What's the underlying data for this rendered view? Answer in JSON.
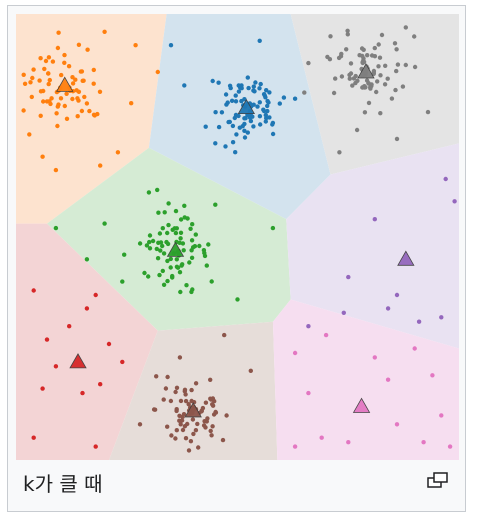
{
  "caption": "k가 클 때",
  "enlarge_icon": "magnify-clip-icon",
  "chart_data": {
    "type": "scatter",
    "title": "",
    "xlabel": "",
    "ylabel": "",
    "grid": false,
    "legend": "none",
    "centroids": [
      {
        "color": "#ff7f0e",
        "x": 0.11,
        "y": 0.16
      },
      {
        "color": "#1f77b4",
        "x": 0.52,
        "y": 0.21
      },
      {
        "color": "#7f7f7f",
        "x": 0.79,
        "y": 0.13
      },
      {
        "color": "#2ca02c",
        "x": 0.36,
        "y": 0.53
      },
      {
        "color": "#9467bd",
        "x": 0.88,
        "y": 0.55
      },
      {
        "color": "#d62728",
        "x": 0.14,
        "y": 0.78
      },
      {
        "color": "#8c564b",
        "x": 0.4,
        "y": 0.89
      },
      {
        "color": "#e377c2",
        "x": 0.78,
        "y": 0.88
      }
    ],
    "regions": [
      {
        "color": "#fde3cf",
        "poly": [
          [
            0,
            0
          ],
          [
            0.34,
            0
          ],
          [
            0.3,
            0.3
          ],
          [
            0.07,
            0.47
          ],
          [
            0,
            0.47
          ]
        ]
      },
      {
        "color": "#d3e3ee",
        "poly": [
          [
            0.34,
            0
          ],
          [
            0.62,
            0
          ],
          [
            0.71,
            0.36
          ],
          [
            0.61,
            0.46
          ],
          [
            0.3,
            0.3
          ]
        ]
      },
      {
        "color": "#e4e4e4",
        "poly": [
          [
            0.62,
            0
          ],
          [
            1,
            0
          ],
          [
            1,
            0.29
          ],
          [
            0.71,
            0.36
          ]
        ]
      },
      {
        "color": "#d5ebd4",
        "poly": [
          [
            0.07,
            0.47
          ],
          [
            0.3,
            0.3
          ],
          [
            0.61,
            0.46
          ],
          [
            0.62,
            0.64
          ],
          [
            0.58,
            0.69
          ],
          [
            0.32,
            0.71
          ]
        ]
      },
      {
        "color": "#e9e2f2",
        "poly": [
          [
            0.71,
            0.36
          ],
          [
            1,
            0.29
          ],
          [
            1,
            0.75
          ],
          [
            0.62,
            0.64
          ],
          [
            0.61,
            0.46
          ]
        ]
      },
      {
        "color": "#f3d4d5",
        "poly": [
          [
            0,
            0.47
          ],
          [
            0.07,
            0.47
          ],
          [
            0.32,
            0.71
          ],
          [
            0.21,
            1
          ],
          [
            0,
            1
          ]
        ]
      },
      {
        "color": "#e6ddd9",
        "poly": [
          [
            0.32,
            0.71
          ],
          [
            0.58,
            0.69
          ],
          [
            0.59,
            1
          ],
          [
            0.21,
            1
          ]
        ]
      },
      {
        "color": "#f6def0",
        "poly": [
          [
            0.58,
            0.69
          ],
          [
            0.62,
            0.64
          ],
          [
            1,
            0.75
          ],
          [
            1,
            1
          ],
          [
            0.59,
            1
          ]
        ]
      }
    ],
    "clusters": [
      {
        "color": "#ff7f0e",
        "cx": 0.11,
        "cy": 0.16,
        "spread": 0.045,
        "n": 70,
        "outliers": [
          [
            0.27,
            0.07
          ],
          [
            0.32,
            0.13
          ],
          [
            0.2,
            0.04
          ],
          [
            0.06,
            0.32
          ],
          [
            0.19,
            0.34
          ],
          [
            0.26,
            0.2
          ],
          [
            0.03,
            0.27
          ],
          [
            0.23,
            0.31
          ],
          [
            0.09,
            0.35
          ]
        ]
      },
      {
        "color": "#1f77b4",
        "cx": 0.52,
        "cy": 0.21,
        "spread": 0.04,
        "n": 85,
        "outliers": [
          [
            0.35,
            0.07
          ],
          [
            0.38,
            0.16
          ],
          [
            0.63,
            0.19
          ],
          [
            0.45,
            0.29
          ],
          [
            0.55,
            0.06
          ]
        ]
      },
      {
        "color": "#7f7f7f",
        "cx": 0.79,
        "cy": 0.13,
        "spread": 0.04,
        "n": 80,
        "outliers": [
          [
            0.66,
            0.11
          ],
          [
            0.73,
            0.31
          ],
          [
            0.88,
            0.03
          ],
          [
            0.93,
            0.22
          ],
          [
            0.71,
            0.05
          ],
          [
            0.86,
            0.28
          ],
          [
            0.77,
            0.26
          ]
        ]
      },
      {
        "color": "#2ca02c",
        "cx": 0.36,
        "cy": 0.53,
        "spread": 0.04,
        "n": 80,
        "outliers": [
          [
            0.09,
            0.48
          ],
          [
            0.2,
            0.47
          ],
          [
            0.3,
            0.4
          ],
          [
            0.38,
            0.43
          ],
          [
            0.24,
            0.6
          ],
          [
            0.5,
            0.64
          ],
          [
            0.58,
            0.48
          ],
          [
            0.16,
            0.55
          ]
        ]
      },
      {
        "color": "#9467bd",
        "cx": 0.88,
        "cy": 0.55,
        "spread": 0.07,
        "n": 0,
        "outliers": [
          [
            0.81,
            0.46
          ],
          [
            0.97,
            0.37
          ],
          [
            0.75,
            0.59
          ],
          [
            0.84,
            0.66
          ],
          [
            0.86,
            0.63
          ],
          [
            0.91,
            0.69
          ],
          [
            0.74,
            0.67
          ],
          [
            0.66,
            0.7
          ],
          [
            0.96,
            0.68
          ],
          [
            0.99,
            0.42
          ]
        ]
      },
      {
        "color": "#d62728",
        "cx": 0.14,
        "cy": 0.78,
        "spread": 0.08,
        "n": 0,
        "outliers": [
          [
            0.04,
            0.62
          ],
          [
            0.16,
            0.66
          ],
          [
            0.18,
            0.63
          ],
          [
            0.07,
            0.73
          ],
          [
            0.09,
            0.79
          ],
          [
            0.21,
            0.74
          ],
          [
            0.15,
            0.85
          ],
          [
            0.19,
            0.83
          ],
          [
            0.06,
            0.84
          ],
          [
            0.04,
            0.95
          ],
          [
            0.18,
            0.97
          ],
          [
            0.12,
            0.7
          ],
          [
            0.24,
            0.78
          ]
        ]
      },
      {
        "color": "#8c564b",
        "cx": 0.4,
        "cy": 0.89,
        "spread": 0.042,
        "n": 75,
        "outliers": [
          [
            0.47,
            0.72
          ],
          [
            0.37,
            0.77
          ],
          [
            0.53,
            0.8
          ],
          [
            0.28,
            0.92
          ]
        ]
      },
      {
        "color": "#e377c2",
        "cx": 0.78,
        "cy": 0.88,
        "spread": 0.09,
        "n": 0,
        "outliers": [
          [
            0.7,
            0.72
          ],
          [
            0.81,
            0.77
          ],
          [
            0.9,
            0.75
          ],
          [
            0.63,
            0.76
          ],
          [
            0.66,
            0.85
          ],
          [
            0.84,
            0.82
          ],
          [
            0.96,
            0.9
          ],
          [
            0.69,
            0.95
          ],
          [
            0.75,
            0.96
          ],
          [
            0.63,
            0.97
          ],
          [
            0.92,
            0.96
          ],
          [
            0.86,
            0.92
          ],
          [
            0.98,
            0.97
          ],
          [
            0.94,
            0.81
          ]
        ]
      }
    ]
  }
}
